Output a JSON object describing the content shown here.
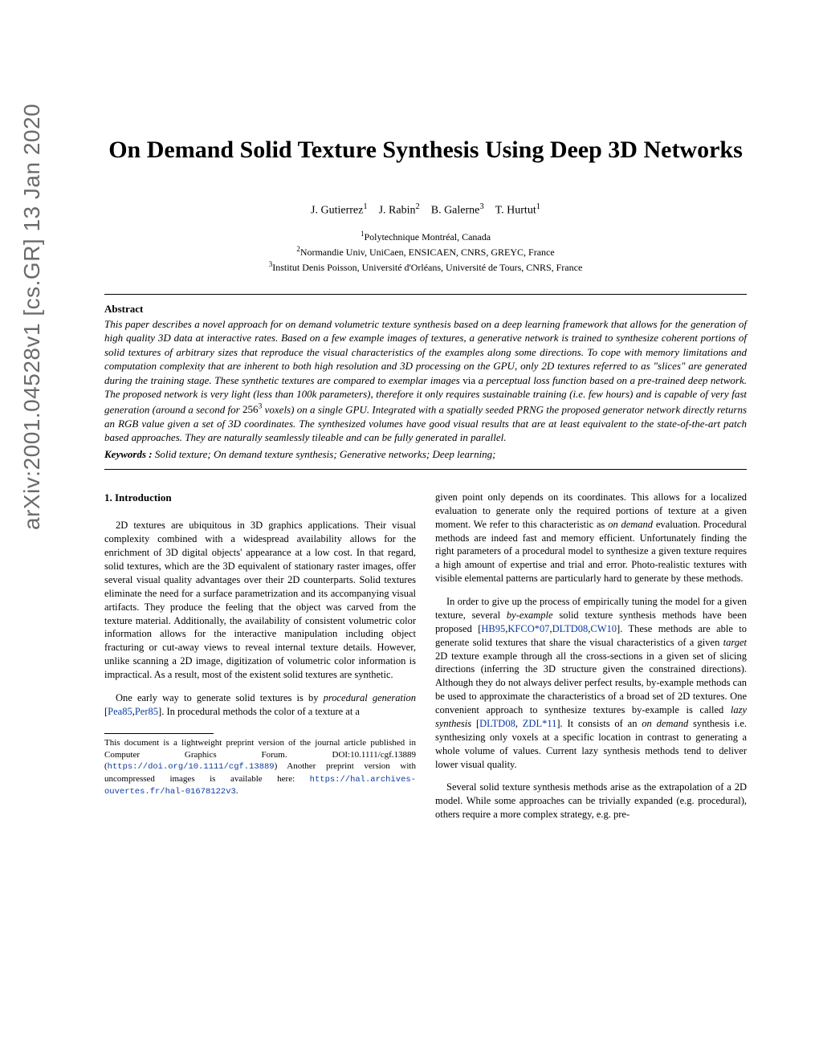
{
  "arxiv_id": "arXiv:2001.04528v1  [cs.GR]  13 Jan 2020",
  "title": "On Demand Solid Texture Synthesis Using Deep 3D Networks",
  "authors_html": "J. Gutierrez<sup>1</sup> J. Rabin<sup>2</sup> B. Galerne<sup>3</sup> T. Hurtut<sup>1</sup>",
  "affiliations": [
    "<sup>1</sup>Polytechnique Montréal, Canada",
    "<sup>2</sup>Normandie Univ, UniCaen, ENSICAEN, CNRS, GREYC, France",
    "<sup>3</sup>Institut Denis Poisson, Université d'Orléans, Université de Tours, CNRS, France"
  ],
  "abstract_label": "Abstract",
  "abstract": "This paper describes a novel approach for on demand volumetric texture synthesis based on a deep learning framework that allows for the generation of high quality 3D data at interactive rates. Based on a few example images of textures, a generative network is trained to synthesize coherent portions of solid textures of arbitrary sizes that reproduce the visual characteristics of the examples along some directions. To cope with memory limitations and computation complexity that are inherent to both high resolution and 3D processing on the GPU, only 2D textures referred to as \"slices\" are generated during the training stage. These synthetic textures are compared to exemplar images <span style=\"font-style:normal\">via</span> a perceptual loss function based on a pre-trained deep network. The proposed network is very light (less than 100k parameters), therefore it only requires sustainable training (i.e. few hours) and is capable of very fast generation (around a second for <span style=\"font-style:normal\">256<sup>3</sup></span> voxels) on a single GPU. Integrated with a spatially seeded PRNG the proposed generator network directly returns an RGB value given a set of 3D coordinates. The synthesized volumes have good visual results that are at least equivalent to the state-of-the-art patch based approaches. They are naturally seamlessly tileable and can be fully generated in parallel.",
  "keywords_label": "Keywords :",
  "keywords": " Solid texture; On demand texture synthesis; Generative networks; Deep learning;",
  "section_heading": "1.  Introduction",
  "col1_p1": "2D textures are ubiquitous in 3D graphics applications. Their visual complexity combined with a widespread availability allows for the enrichment of 3D digital objects' appearance at a low cost. In that regard, solid textures, which are the 3D equivalent of stationary raster images, offer several visual quality advantages over their 2D counterparts. Solid textures eliminate the need for a surface parametrization and its accompanying visual artifacts. They produce the feeling that the object was carved from the texture material. Additionally, the availability of consistent volumetric color information allows for the interactive manipulation including object fracturing or cut-away views to reveal internal texture details. However, unlike scanning a 2D image, digitization of volumetric color information is impractical. As a result, most of the existent solid textures are synthetic.",
  "col1_p2": "One early way to generate solid textures is by <i>procedural generation</i> [<span class=\"cite\">Pea85</span>,<span class=\"cite\">Per85</span>]. In procedural methods the color of a texture at a",
  "footnote": "This document is a lightweight preprint version of the journal article published in Computer Graphics Forum. DOI:10.1111/cgf.13889 (<span class=\"link\">https://doi.org/10.1111/cgf.13889</span>) Another preprint version with uncompressed images is available here: <span class=\"link\">https://hal.archives-ouvertes.fr/hal-01678122v3</span>.",
  "col2_p1": "given point only depends on its coordinates. This allows for a localized evaluation to generate only the required portions of texture at a given moment. We refer to this characteristic as <i>on demand</i> evaluation. Procedural methods are indeed fast and memory efficient. Unfortunately finding the right parameters of a procedural model to synthesize a given texture requires a high amount of expertise and trial and error. Photo-realistic textures with visible elemental patterns are particularly hard to generate by these methods.",
  "col2_p2": "In order to give up the process of empirically tuning the model for a given texture, several <i>by-example</i> solid texture synthesis methods have been proposed [<span class=\"cite\">HB95</span>,<span class=\"cite\">KFCO*07</span>,<span class=\"cite\">DLTD08</span>,<span class=\"cite\">CW10</span>]. These methods are able to generate solid textures that share the visual characteristics of a given <i>target</i> 2D texture example through all the cross-sections in a given set of slicing directions (inferring the 3D structure given the constrained directions). Although they do not always deliver perfect results, by-example methods can be used to approximate the characteristics of a broad set of 2D textures. One convenient approach to synthesize textures by-example is called <i>lazy synthesis</i> [<span class=\"cite\">DLTD08</span>, <span class=\"cite\">ZDL*11</span>]. It consists of an <i>on demand</i> synthesis i.e. synthesizing only voxels at a specific location in contrast to generating a whole volume of values. Current lazy synthesis methods tend to deliver lower visual quality.",
  "col2_p3": "Several solid texture synthesis methods arise as the extrapolation of a 2D model. While some approaches can be trivially expanded (e.g. procedural), others require a more complex strategy, e.g. pre-",
  "colors": {
    "text": "#000000",
    "arxiv": "#6b6b6b",
    "cite": "#0b3aa2",
    "background": "#ffffff"
  }
}
